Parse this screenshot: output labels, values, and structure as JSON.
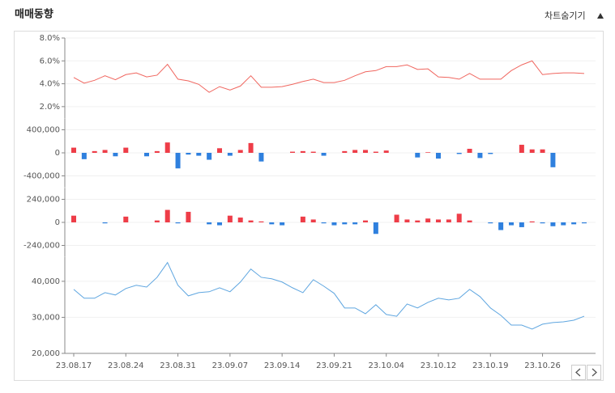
{
  "header": {
    "title": "매매동향",
    "button": "차트숨기기"
  },
  "chart_data": [
    {
      "type": "line",
      "color": "#f0665f",
      "values": [
        4.55,
        4.05,
        4.3,
        4.7,
        4.35,
        4.8,
        4.95,
        4.6,
        4.75,
        5.7,
        4.4,
        4.25,
        3.95,
        3.25,
        3.75,
        3.45,
        3.8,
        4.7,
        3.7,
        3.7,
        3.75,
        3.95,
        4.2,
        4.4,
        4.1,
        4.1,
        4.3,
        4.7,
        5.05,
        5.15,
        5.5,
        5.5,
        5.65,
        5.25,
        5.3,
        4.6,
        4.55,
        4.4,
        4.9,
        4.4,
        4.4,
        4.4,
        5.15,
        5.65,
        6.0,
        4.8,
        4.9,
        4.95,
        4.95,
        4.9
      ],
      "ylim": [
        1,
        8
      ],
      "yticks": [
        {
          "value": 8,
          "label": "8.0%"
        },
        {
          "value": 6,
          "label": "6.0%"
        },
        {
          "value": 4,
          "label": "4.0%"
        },
        {
          "value": 2,
          "label": "2.0%"
        }
      ]
    },
    {
      "type": "bar",
      "positive_color": "#ee3d48",
      "negative_color": "#2f80de",
      "values": [
        90000,
        -110000,
        30000,
        50000,
        -60000,
        90000,
        0,
        -60000,
        30000,
        180000,
        -270000,
        -30000,
        -50000,
        -120000,
        80000,
        -50000,
        50000,
        170000,
        -150000,
        0,
        0,
        20000,
        30000,
        20000,
        -50000,
        0,
        30000,
        50000,
        50000,
        20000,
        40000,
        0,
        0,
        -80000,
        10000,
        -100000,
        0,
        -20000,
        70000,
        -90000,
        -20000,
        0,
        0,
        140000,
        60000,
        60000,
        -250000,
        0,
        0,
        0
      ],
      "ylim": [
        -600000,
        600000
      ],
      "yticks": [
        {
          "value": 400000,
          "label": "400,000"
        },
        0,
        {
          "value": -400000,
          "label": "-400,000"
        }
      ]
    },
    {
      "type": "bar",
      "positive_color": "#ee3d48",
      "negative_color": "#2f80de",
      "values": [
        70000,
        0,
        0,
        -10000,
        0,
        60000,
        0,
        0,
        20000,
        130000,
        -10000,
        110000,
        0,
        -20000,
        -30000,
        70000,
        50000,
        20000,
        10000,
        -20000,
        -30000,
        0,
        60000,
        30000,
        -10000,
        -30000,
        -20000,
        -20000,
        20000,
        -120000,
        0,
        80000,
        30000,
        20000,
        40000,
        30000,
        30000,
        90000,
        20000,
        0,
        -10000,
        -80000,
        -30000,
        -50000,
        10000,
        -10000,
        -40000,
        -30000,
        -20000,
        -10000
      ],
      "ylim": [
        -360000,
        360000
      ],
      "yticks": [
        {
          "value": 240000,
          "label": "240,000"
        },
        0,
        {
          "value": -240000,
          "label": "-240,000"
        }
      ]
    },
    {
      "type": "line",
      "color": "#5fa6e0",
      "categories": [
        "23.08.17",
        null,
        null,
        null,
        null,
        "23.08.24",
        null,
        null,
        null,
        null,
        "23.08.31",
        null,
        null,
        null,
        null,
        "23.09.07",
        null,
        null,
        null,
        null,
        "23.09.14",
        null,
        null,
        null,
        null,
        "23.09.21",
        null,
        null,
        null,
        null,
        "23.10.04",
        null,
        null,
        null,
        null,
        "23.10.12",
        null,
        null,
        null,
        null,
        "23.10.19",
        null,
        null,
        null,
        null,
        "23.10.26",
        null,
        null,
        null,
        null
      ],
      "values": [
        37750,
        35300,
        35300,
        36850,
        36200,
        38000,
        38900,
        38400,
        41100,
        45200,
        38900,
        35950,
        36850,
        37100,
        38200,
        37100,
        39800,
        43400,
        41100,
        40700,
        39800,
        38200,
        36850,
        40450,
        38650,
        36650,
        32600,
        32600,
        31000,
        33500,
        30800,
        30300,
        33700,
        32600,
        34150,
        35300,
        34850,
        35300,
        37750,
        35750,
        32600,
        30550,
        27850,
        27850,
        26750,
        28100,
        28550,
        28750,
        29200,
        30300
      ],
      "ylim": [
        20000,
        46700
      ],
      "yticks": [
        {
          "value": 40000,
          "label": "40,000"
        },
        {
          "value": 30000,
          "label": "30,000"
        },
        {
          "value": 20000,
          "label": "20,000"
        }
      ]
    }
  ]
}
